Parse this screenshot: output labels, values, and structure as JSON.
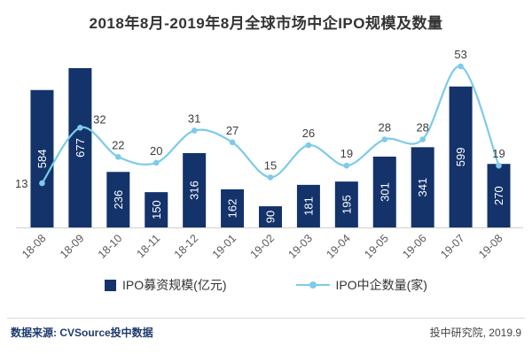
{
  "title": "2018年8月-2019年8月全球市场中企IPO规模及数量",
  "chart_data": {
    "type": "combo",
    "categories": [
      "18-08",
      "18-09",
      "18-10",
      "18-11",
      "18-12",
      "19-01",
      "19-02",
      "19-03",
      "19-04",
      "19-05",
      "19-06",
      "19-07",
      "19-08"
    ],
    "series": [
      {
        "name": "IPO募资规模(亿元)",
        "type": "bar",
        "color": "#14336B",
        "values": [
          584,
          677,
          236,
          150,
          316,
          162,
          90,
          181,
          195,
          301,
          341,
          599,
          270
        ]
      },
      {
        "name": "IPO中企数量(家)",
        "type": "line",
        "color": "#7CCBE8",
        "values": [
          13,
          32,
          22,
          20,
          31,
          27,
          15,
          26,
          19,
          28,
          28,
          53,
          19
        ]
      }
    ],
    "title": "2018年8月-2019年8月全球市场中企IPO规模及数量",
    "grid": false,
    "legend_position": "bottom",
    "bar_axis_range": [
      0,
      700
    ],
    "value_labels": true
  },
  "footer": {
    "source": "数据来源: CVSource投中数据",
    "credit": "投中研究院, 2019.9"
  }
}
